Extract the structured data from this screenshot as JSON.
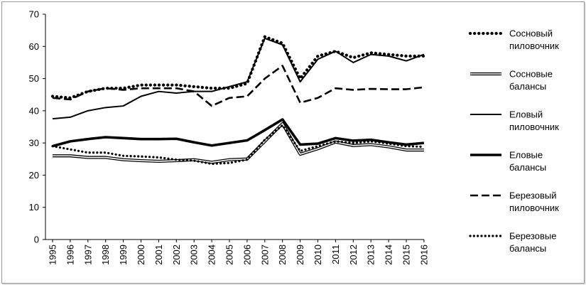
{
  "chart_data": {
    "type": "line",
    "title": "",
    "xlabel": "",
    "ylabel": "",
    "ylim": [
      0,
      70
    ],
    "yticks": [
      0,
      10,
      20,
      30,
      40,
      50,
      60,
      70
    ],
    "categories": [
      "1995",
      "1996",
      "1997",
      "1998",
      "1999",
      "2000",
      "2001",
      "2002",
      "2003",
      "2004",
      "2005",
      "2006",
      "2007",
      "2008",
      "2009",
      "2010",
      "2011",
      "2012",
      "2013",
      "2014",
      "2015",
      "2016"
    ],
    "grid": false,
    "legend_position": "right",
    "series": [
      {
        "name_lines": [
          "Сосновый",
          "пиловочник"
        ],
        "style": "dotted-bold",
        "values": [
          44.5,
          44,
          46,
          47,
          47,
          48,
          48,
          48,
          47.5,
          47,
          47,
          48.5,
          63,
          61,
          50,
          57,
          58.5,
          56.5,
          58,
          57.5,
          57,
          57
        ]
      },
      {
        "name_lines": [
          "Сосновые",
          "балансы"
        ],
        "style": "double-outline",
        "values": [
          26,
          26,
          25.5,
          25.5,
          24.8,
          24.5,
          24.3,
          24.5,
          24.8,
          24,
          24.8,
          25,
          30.5,
          36,
          26.5,
          28.2,
          30.3,
          29.2,
          29.5,
          28.8,
          27.8,
          27.8
        ]
      },
      {
        "name_lines": [
          "Еловый",
          "пиловочник"
        ],
        "style": "solid",
        "values": [
          37.5,
          38,
          40,
          41,
          41.5,
          44.5,
          46,
          45.5,
          46,
          46,
          47.5,
          49,
          62.5,
          60.5,
          49,
          56,
          58.5,
          55,
          57.5,
          57,
          55.5,
          57.5
        ]
      },
      {
        "name_lines": [
          "Еловые",
          "балансы"
        ],
        "style": "solid-bold",
        "values": [
          29,
          30.5,
          31.2,
          31.8,
          31.5,
          31.2,
          31.2,
          31.3,
          30.2,
          29.2,
          30,
          30.8,
          34,
          37.3,
          29.5,
          29.8,
          31.5,
          30.7,
          31,
          30.2,
          29.5,
          30
        ]
      },
      {
        "name_lines": [
          "Березовый",
          "пиловочник"
        ],
        "style": "dashed",
        "values": [
          44,
          43.5,
          46,
          47,
          46.5,
          47,
          47,
          47,
          46,
          41.5,
          44,
          44.5,
          50,
          54,
          42.5,
          44,
          47,
          46.5,
          46.8,
          46.7,
          46.7,
          47.3
        ]
      },
      {
        "name_lines": [
          "Березовые",
          "балансы"
        ],
        "style": "dotted",
        "values": [
          29,
          28,
          27,
          27,
          26,
          25.8,
          25.5,
          24.8,
          24.5,
          23.5,
          23.8,
          24.8,
          31,
          35.5,
          27.5,
          29,
          30.5,
          30,
          30.5,
          29.8,
          29,
          28.8
        ]
      }
    ]
  }
}
